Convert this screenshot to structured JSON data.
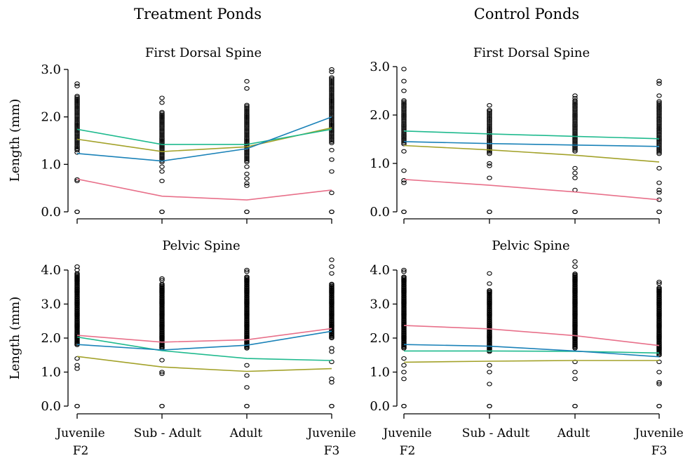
{
  "column_titles": [
    "Treatment Ponds",
    "Control Ponds"
  ],
  "ylabel": "Length (mm)",
  "x_categories": [
    {
      "line1": "Juvenile",
      "line2": "F2"
    },
    {
      "line1": "Sub - Adult",
      "line2": ""
    },
    {
      "line1": "Adult",
      "line2": ""
    },
    {
      "line1": "Juvenile",
      "line2": "F3"
    }
  ],
  "colors": {
    "pink": "#e8708a",
    "olive": "#a3a22a",
    "teal": "#1fba8e",
    "blue": "#1a82b8",
    "points": "#000000"
  },
  "chart_data": [
    {
      "type": "line",
      "panel": "treatment-first-dorsal",
      "title": "First Dorsal Spine",
      "ylabel": "Length (mm)",
      "ylim": [
        0,
        3.0
      ],
      "yticks": [
        "0.0",
        "1.0",
        "2.0",
        "3.0"
      ],
      "series": [
        {
          "color": "#e8708a",
          "values": [
            0.69,
            0.33,
            0.25,
            0.46
          ]
        },
        {
          "color": "#a3a22a",
          "values": [
            1.53,
            1.27,
            1.37,
            1.77
          ]
        },
        {
          "color": "#1fba8e",
          "values": [
            1.74,
            1.42,
            1.42,
            1.74
          ]
        },
        {
          "color": "#1a82b8",
          "values": [
            1.23,
            1.07,
            1.33,
            2.0
          ]
        }
      ],
      "points": {
        "band_min": [
          1.3,
          1.05,
          1.05,
          1.45
        ],
        "band_max": [
          2.45,
          2.1,
          2.25,
          2.85
        ],
        "extra": [
          [
            2.7,
            2.65,
            1.25,
            0.68,
            0.65,
            0.0,
            0.0
          ],
          [
            2.4,
            2.3,
            0.95,
            0.85,
            0.65,
            0.0,
            0.0
          ],
          [
            2.75,
            2.6,
            0.95,
            0.8,
            0.7,
            0.6,
            0.55,
            0.0,
            0.0
          ],
          [
            3.0,
            2.95,
            1.3,
            1.1,
            0.85,
            0.4,
            0.0,
            0.0
          ]
        ]
      }
    },
    {
      "type": "line",
      "panel": "control-first-dorsal",
      "title": "First Dorsal Spine",
      "ylabel": "",
      "ylim": [
        0,
        3.0
      ],
      "yticks": [
        "0.0",
        "1.0",
        "2.0",
        "3.0"
      ],
      "series": [
        {
          "color": "#e8708a",
          "values": [
            0.67,
            0.55,
            0.41,
            0.25
          ]
        },
        {
          "color": "#a3a22a",
          "values": [
            1.37,
            1.28,
            1.17,
            1.03
          ]
        },
        {
          "color": "#1fba8e",
          "values": [
            1.67,
            1.61,
            1.56,
            1.51
          ]
        },
        {
          "color": "#1a82b8",
          "values": [
            1.45,
            1.41,
            1.38,
            1.35
          ]
        }
      ],
      "points": {
        "band_min": [
          1.4,
          1.2,
          1.25,
          1.2
        ],
        "band_max": [
          2.3,
          2.1,
          2.3,
          2.3
        ],
        "extra": [
          [
            2.95,
            2.7,
            2.5,
            1.25,
            0.85,
            0.65,
            0.6,
            0.0,
            0.0
          ],
          [
            2.2,
            2.1,
            1.0,
            0.95,
            0.7,
            0.0,
            0.0
          ],
          [
            2.4,
            2.35,
            0.9,
            0.8,
            0.7,
            0.45,
            0.0,
            0.0
          ],
          [
            2.7,
            2.65,
            2.4,
            0.9,
            0.6,
            0.45,
            0.4,
            0.25,
            0.0,
            0.0
          ]
        ]
      }
    },
    {
      "type": "line",
      "panel": "treatment-pelvic",
      "title": "Pelvic Spine",
      "ylabel": "Length (mm)",
      "ylim": [
        0,
        4.0
      ],
      "yticks": [
        "0.0",
        "1.0",
        "2.0",
        "3.0",
        "4.0"
      ],
      "series": [
        {
          "color": "#e8708a",
          "values": [
            2.08,
            1.88,
            1.95,
            2.28
          ]
        },
        {
          "color": "#a3a22a",
          "values": [
            1.46,
            1.15,
            1.02,
            1.1
          ]
        },
        {
          "color": "#1fba8e",
          "values": [
            2.03,
            1.63,
            1.4,
            1.34
          ]
        },
        {
          "color": "#1a82b8",
          "values": [
            1.81,
            1.65,
            1.79,
            2.2
          ]
        }
      ],
      "points": {
        "band_min": [
          1.8,
          1.7,
          1.7,
          2.0
        ],
        "band_max": [
          3.9,
          3.6,
          3.8,
          3.6
        ],
        "extra": [
          [
            4.1,
            4.0,
            1.4,
            1.2,
            1.1,
            0.0,
            0.0
          ],
          [
            3.75,
            3.7,
            1.35,
            1.0,
            0.95,
            0.0,
            0.0
          ],
          [
            4.0,
            3.95,
            1.2,
            0.9,
            0.55,
            0.0,
            0.0
          ],
          [
            4.3,
            4.1,
            3.9,
            1.7,
            1.6,
            1.3,
            0.8,
            0.7,
            0.0,
            0.0
          ]
        ]
      }
    },
    {
      "type": "line",
      "panel": "control-pelvic",
      "title": "Pelvic Spine",
      "ylabel": "",
      "ylim": [
        0,
        4.0
      ],
      "yticks": [
        "0.0",
        "1.0",
        "2.0",
        "3.0",
        "4.0"
      ],
      "series": [
        {
          "color": "#e8708a",
          "values": [
            2.37,
            2.27,
            2.07,
            1.78
          ]
        },
        {
          "color": "#a3a22a",
          "values": [
            1.29,
            1.32,
            1.34,
            1.34
          ]
        },
        {
          "color": "#1fba8e",
          "values": [
            1.62,
            1.62,
            1.61,
            1.56
          ]
        },
        {
          "color": "#1a82b8",
          "values": [
            1.81,
            1.76,
            1.62,
            1.45
          ]
        }
      ],
      "points": {
        "band_min": [
          1.7,
          1.6,
          1.7,
          1.5
        ],
        "band_max": [
          3.8,
          3.4,
          3.9,
          3.5
        ],
        "extra": [
          [
            4.0,
            3.95,
            1.4,
            1.2,
            1.0,
            0.8,
            0.0,
            0.0
          ],
          [
            3.9,
            3.6,
            1.2,
            1.0,
            0.65,
            0.0,
            0.0
          ],
          [
            4.25,
            4.1,
            1.3,
            1.0,
            0.8,
            0.0,
            0.0
          ],
          [
            3.65,
            3.6,
            1.3,
            1.0,
            0.7,
            0.65,
            0.0,
            0.0
          ]
        ]
      }
    }
  ]
}
